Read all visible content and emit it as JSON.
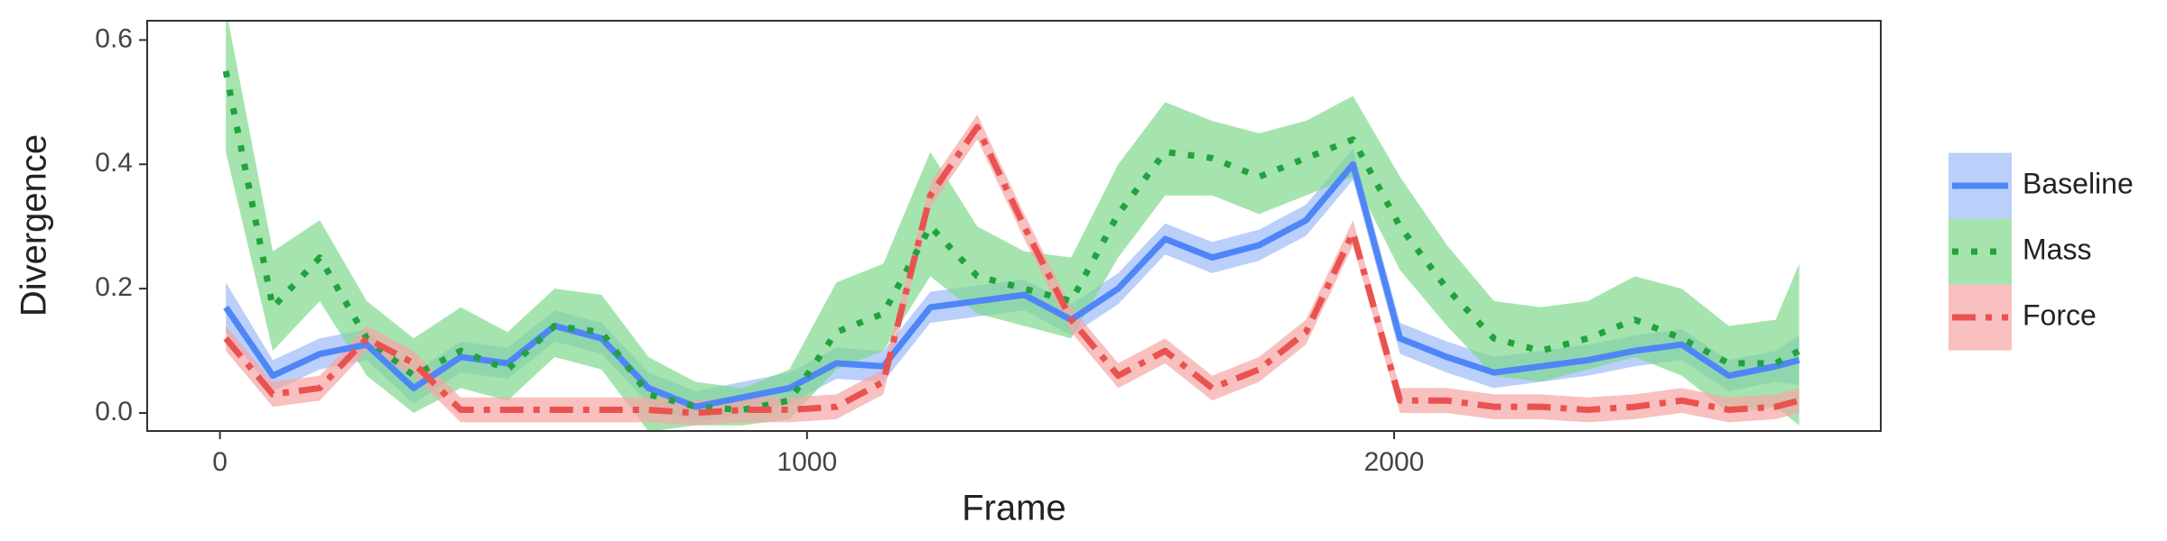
{
  "chart_data": {
    "type": "line",
    "x_label": "Frame",
    "y_label": "Divergence",
    "x": [
      10,
      90,
      170,
      250,
      330,
      410,
      490,
      570,
      650,
      730,
      810,
      890,
      970,
      1050,
      1130,
      1210,
      1290,
      1370,
      1450,
      1530,
      1610,
      1690,
      1770,
      1850,
      1930,
      2010,
      2090,
      2170,
      2250,
      2330,
      2410,
      2490,
      2570,
      2650,
      2690
    ],
    "series": [
      {
        "name": "Baseline",
        "color": "#4f86f7",
        "band_color": "#9dbcf8",
        "linestyle": "solid",
        "values": [
          0.17,
          0.06,
          0.095,
          0.11,
          0.04,
          0.09,
          0.08,
          0.14,
          0.12,
          0.04,
          0.01,
          0.025,
          0.04,
          0.08,
          0.075,
          0.17,
          0.18,
          0.19,
          0.15,
          0.2,
          0.28,
          0.25,
          0.27,
          0.31,
          0.4,
          0.12,
          0.09,
          0.065,
          0.075,
          0.085,
          0.1,
          0.11,
          0.06,
          0.075,
          0.085
        ],
        "lower": [
          0.13,
          0.035,
          0.07,
          0.085,
          0.015,
          0.065,
          0.055,
          0.115,
          0.095,
          0.015,
          -0.015,
          0,
          0.015,
          0.055,
          0.05,
          0.145,
          0.155,
          0.165,
          0.125,
          0.175,
          0.255,
          0.225,
          0.245,
          0.285,
          0.375,
          0.095,
          0.065,
          0.04,
          0.05,
          0.06,
          0.075,
          0.085,
          0.035,
          0.05,
          0.045
        ],
        "upper": [
          0.21,
          0.085,
          0.12,
          0.135,
          0.065,
          0.115,
          0.105,
          0.165,
          0.145,
          0.065,
          0.035,
          0.05,
          0.065,
          0.105,
          0.1,
          0.195,
          0.205,
          0.215,
          0.175,
          0.225,
          0.305,
          0.275,
          0.295,
          0.335,
          0.425,
          0.145,
          0.115,
          0.09,
          0.1,
          0.11,
          0.125,
          0.135,
          0.085,
          0.1,
          0.125
        ]
      },
      {
        "name": "Mass",
        "color": "#1fa33f",
        "band_color": "#7fd98c",
        "linestyle": "dotted",
        "values": [
          0.55,
          0.17,
          0.25,
          0.12,
          0.06,
          0.1,
          0.07,
          0.14,
          0.13,
          0.03,
          0.01,
          0.005,
          0.02,
          0.13,
          0.16,
          0.3,
          0.22,
          0.2,
          0.18,
          0.32,
          0.42,
          0.41,
          0.38,
          0.41,
          0.44,
          0.3,
          0.2,
          0.12,
          0.1,
          0.12,
          0.15,
          0.12,
          0.08,
          0.08,
          0.1
        ],
        "lower": [
          0.42,
          0.1,
          0.18,
          0.06,
          0,
          0.04,
          0.02,
          0.09,
          0.07,
          -0.03,
          -0.02,
          -0.02,
          -0.01,
          0.07,
          0.1,
          0.22,
          0.16,
          0.14,
          0.12,
          0.25,
          0.35,
          0.35,
          0.32,
          0.35,
          0.38,
          0.23,
          0.14,
          0.06,
          0.05,
          0.07,
          0.09,
          0.06,
          0,
          0.01,
          -0.02
        ],
        "upper": [
          0.65,
          0.26,
          0.31,
          0.18,
          0.12,
          0.17,
          0.13,
          0.2,
          0.19,
          0.09,
          0.05,
          0.04,
          0.07,
          0.21,
          0.24,
          0.42,
          0.3,
          0.26,
          0.25,
          0.4,
          0.5,
          0.47,
          0.45,
          0.47,
          0.51,
          0.38,
          0.27,
          0.18,
          0.17,
          0.18,
          0.22,
          0.2,
          0.14,
          0.15,
          0.24
        ]
      },
      {
        "name": "Force",
        "color": "#ea5250",
        "band_color": "#f6a5a5",
        "linestyle": "dashdot",
        "values": [
          0.12,
          0.03,
          0.04,
          0.12,
          0.08,
          0.005,
          0.005,
          0.005,
          0.005,
          0.005,
          0,
          0.005,
          0.005,
          0.01,
          0.05,
          0.35,
          0.46,
          0.3,
          0.15,
          0.06,
          0.1,
          0.04,
          0.07,
          0.13,
          0.29,
          0.02,
          0.02,
          0.01,
          0.01,
          0.005,
          0.01,
          0.02,
          0.005,
          0.01,
          0.02
        ],
        "lower": [
          0.1,
          0.01,
          0.02,
          0.1,
          0.06,
          -0.015,
          -0.015,
          -0.015,
          -0.015,
          -0.015,
          -0.02,
          -0.015,
          -0.015,
          -0.01,
          0.03,
          0.33,
          0.44,
          0.28,
          0.13,
          0.04,
          0.08,
          0.02,
          0.05,
          0.11,
          0.27,
          0,
          0,
          -0.01,
          -0.01,
          -0.015,
          -0.01,
          0,
          -0.015,
          -0.01,
          0
        ],
        "upper": [
          0.14,
          0.05,
          0.06,
          0.14,
          0.1,
          0.025,
          0.025,
          0.025,
          0.025,
          0.025,
          0.02,
          0.025,
          0.025,
          0.03,
          0.07,
          0.37,
          0.48,
          0.32,
          0.17,
          0.08,
          0.12,
          0.06,
          0.09,
          0.15,
          0.31,
          0.04,
          0.04,
          0.03,
          0.03,
          0.025,
          0.03,
          0.04,
          0.025,
          0.03,
          0.04
        ]
      }
    ],
    "xlim": [
      -124,
      2829
    ],
    "xticks": [
      0,
      1000,
      2000
    ],
    "ylim": [
      -0.029,
      0.631
    ],
    "yticks": [
      {
        "value": 0,
        "label": "0.0"
      },
      0.2,
      0.4,
      0.6
    ],
    "grid": false,
    "legend": "right"
  }
}
